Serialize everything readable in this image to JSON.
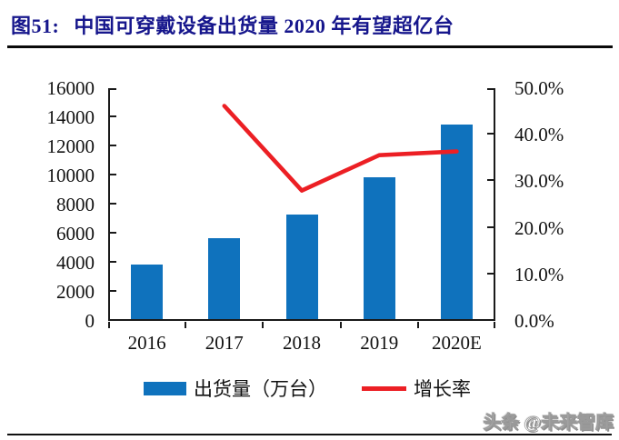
{
  "header": {
    "title_prefix": "图51:",
    "title": "中国可穿戴设备出货量 2020 年有望超亿台"
  },
  "colors": {
    "title": "#16168C",
    "bar": "#0F72BD",
    "line": "#EC1F24",
    "axis": "#1a1a1a"
  },
  "watermark": {
    "text": "头条 @未来智库"
  },
  "chart_data": {
    "type": "bar",
    "title": "图51: 中国可穿戴设备出货量 2020 年有望超亿台",
    "categories": [
      "2016",
      "2017",
      "2018",
      "2019",
      "2020E"
    ],
    "series": [
      {
        "name": "出货量（万台）",
        "type": "bar",
        "axis": "left",
        "color": "#0F72BD",
        "values": [
          3900,
          5700,
          7300,
          9900,
          13500
        ]
      },
      {
        "name": "增长率",
        "type": "line",
        "axis": "right",
        "color": "#EC1F24",
        "unit": "%",
        "values": [
          null,
          46.2,
          28.0,
          35.6,
          36.4
        ]
      }
    ],
    "left_axis": {
      "min": 0,
      "max": 16000,
      "step": 2000,
      "tick_labels": [
        "0",
        "2000",
        "4000",
        "6000",
        "8000",
        "10000",
        "12000",
        "14000",
        "16000"
      ]
    },
    "right_axis": {
      "min": 0,
      "max": 50,
      "step": 10,
      "tick_labels": [
        "0.0%",
        "10.0%",
        "20.0%",
        "30.0%",
        "40.0%",
        "50.0%"
      ]
    },
    "xlabel": "",
    "ylabel": "",
    "grid": false,
    "legend_position": "bottom"
  }
}
